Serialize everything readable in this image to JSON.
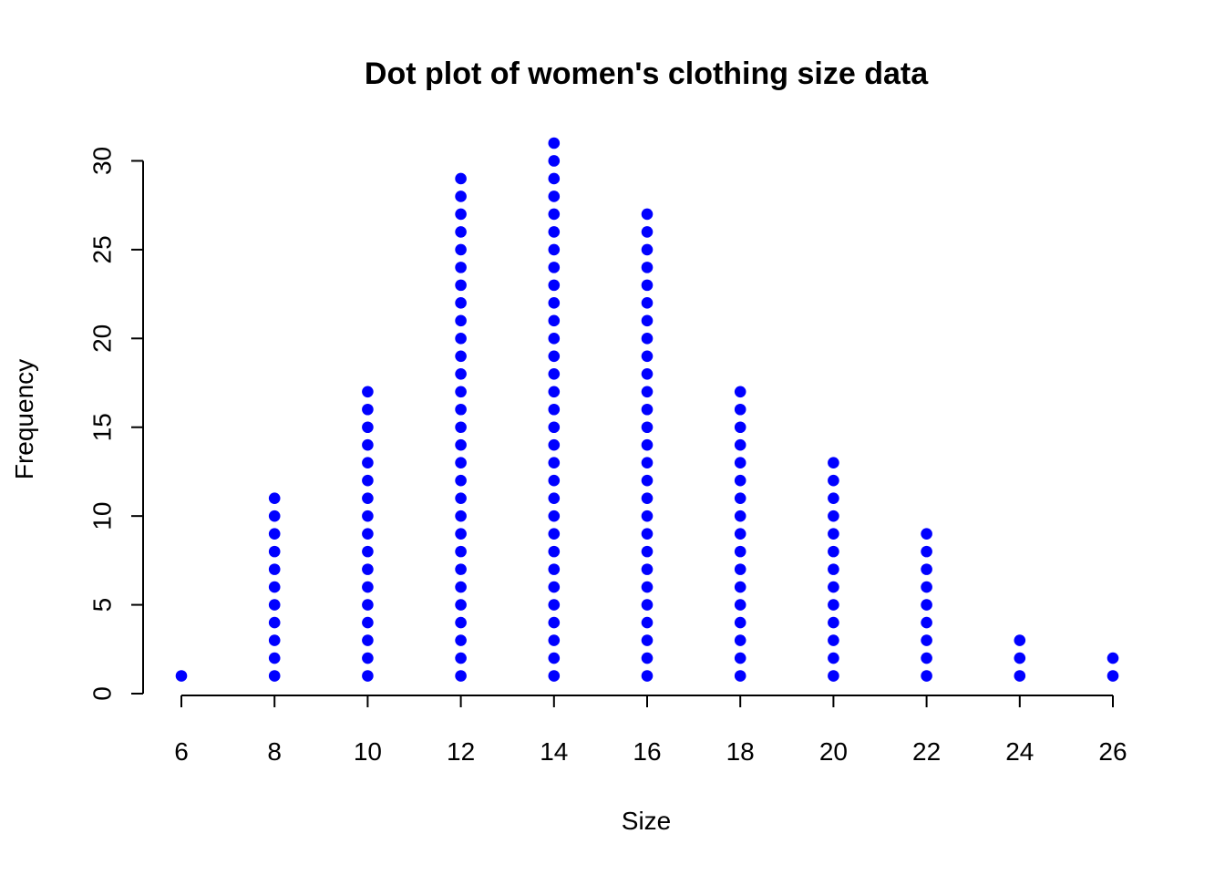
{
  "chart_data": {
    "type": "scatter",
    "title": "Dot plot of women's clothing size data",
    "xlabel": "Size",
    "ylabel": "Frequency",
    "x_ticks": [
      6,
      8,
      10,
      12,
      14,
      16,
      18,
      20,
      22,
      24,
      26
    ],
    "y_ticks": [
      0,
      5,
      10,
      15,
      20,
      25,
      30
    ],
    "xlim": [
      6,
      26
    ],
    "ylim": [
      0,
      31
    ],
    "grid": false,
    "legend": "none",
    "point_color": "#0000FF",
    "categories": [
      6,
      8,
      10,
      12,
      14,
      16,
      18,
      20,
      22,
      24,
      26
    ],
    "counts": [
      1,
      11,
      17,
      29,
      31,
      27,
      17,
      13,
      9,
      3,
      2
    ]
  }
}
